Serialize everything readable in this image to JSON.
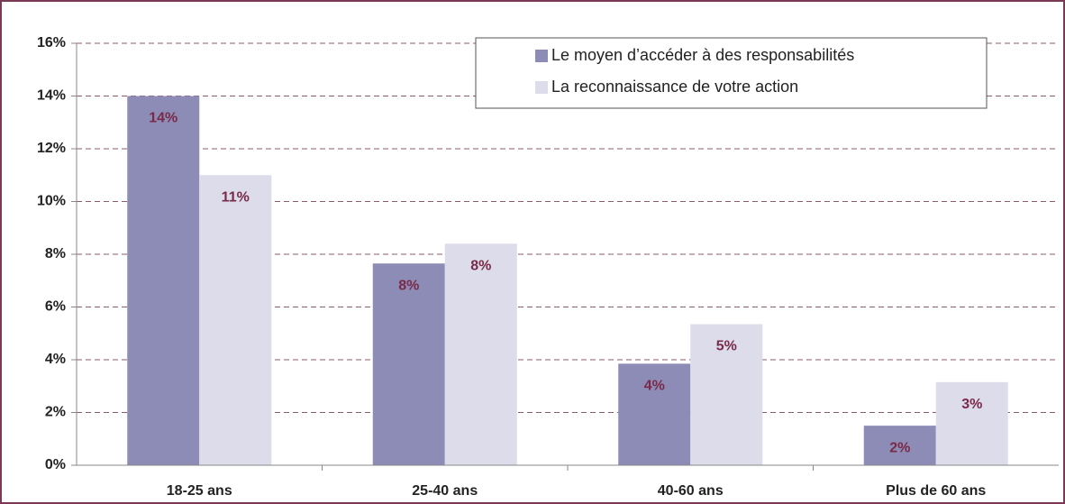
{
  "chart_data": {
    "type": "bar",
    "categories": [
      "18-25 ans",
      "25-40 ans",
      "40-60 ans",
      "Plus de 60 ans"
    ],
    "series": [
      {
        "name": "Le moyen d’accéder à des responsabilités",
        "color": "#8c8cb6",
        "values": [
          14,
          7.65,
          3.85,
          1.5
        ],
        "value_labels": [
          "14%",
          "8%",
          "4%",
          "2%"
        ]
      },
      {
        "name": "La reconnaissance de votre action",
        "color": "#dcdcea",
        "values": [
          11,
          8.4,
          5.35,
          3.15
        ],
        "value_labels": [
          "11%",
          "8%",
          "5%",
          "3%"
        ]
      }
    ],
    "ylim": [
      0,
      16
    ],
    "yticks": [
      {
        "value": 0,
        "label": "0%"
      },
      {
        "value": 2,
        "label": "2%"
      },
      {
        "value": 4,
        "label": "4%"
      },
      {
        "value": 6,
        "label": "6%"
      },
      {
        "value": 8,
        "label": "8%"
      },
      {
        "value": 10,
        "label": "10%"
      },
      {
        "value": 12,
        "label": "12%"
      },
      {
        "value": 14,
        "label": "14%"
      },
      {
        "value": 16,
        "label": "16%"
      }
    ],
    "grid": true,
    "legend": "top-right"
  }
}
